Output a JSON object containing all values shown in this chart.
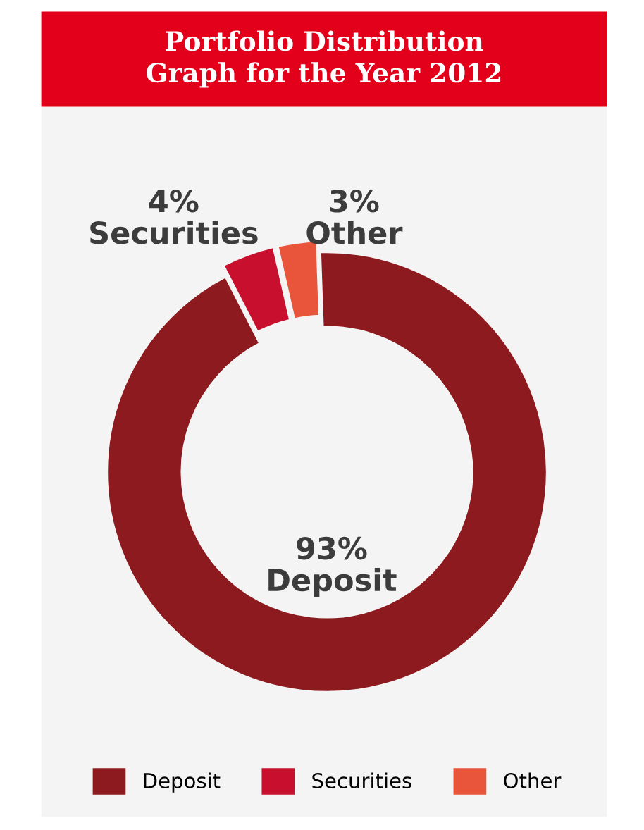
{
  "chart_data": {
    "type": "donut",
    "title": "Portfolio Distribution\nGraph for the Year 2012",
    "categories": [
      "Deposit",
      "Securities",
      "Other"
    ],
    "values": [
      93,
      4,
      3
    ],
    "value_labels": [
      "93%",
      "4%",
      "3%"
    ],
    "colors": [
      "#8c1a1f",
      "#c8102e",
      "#e8553a"
    ],
    "legend": "bottom"
  }
}
